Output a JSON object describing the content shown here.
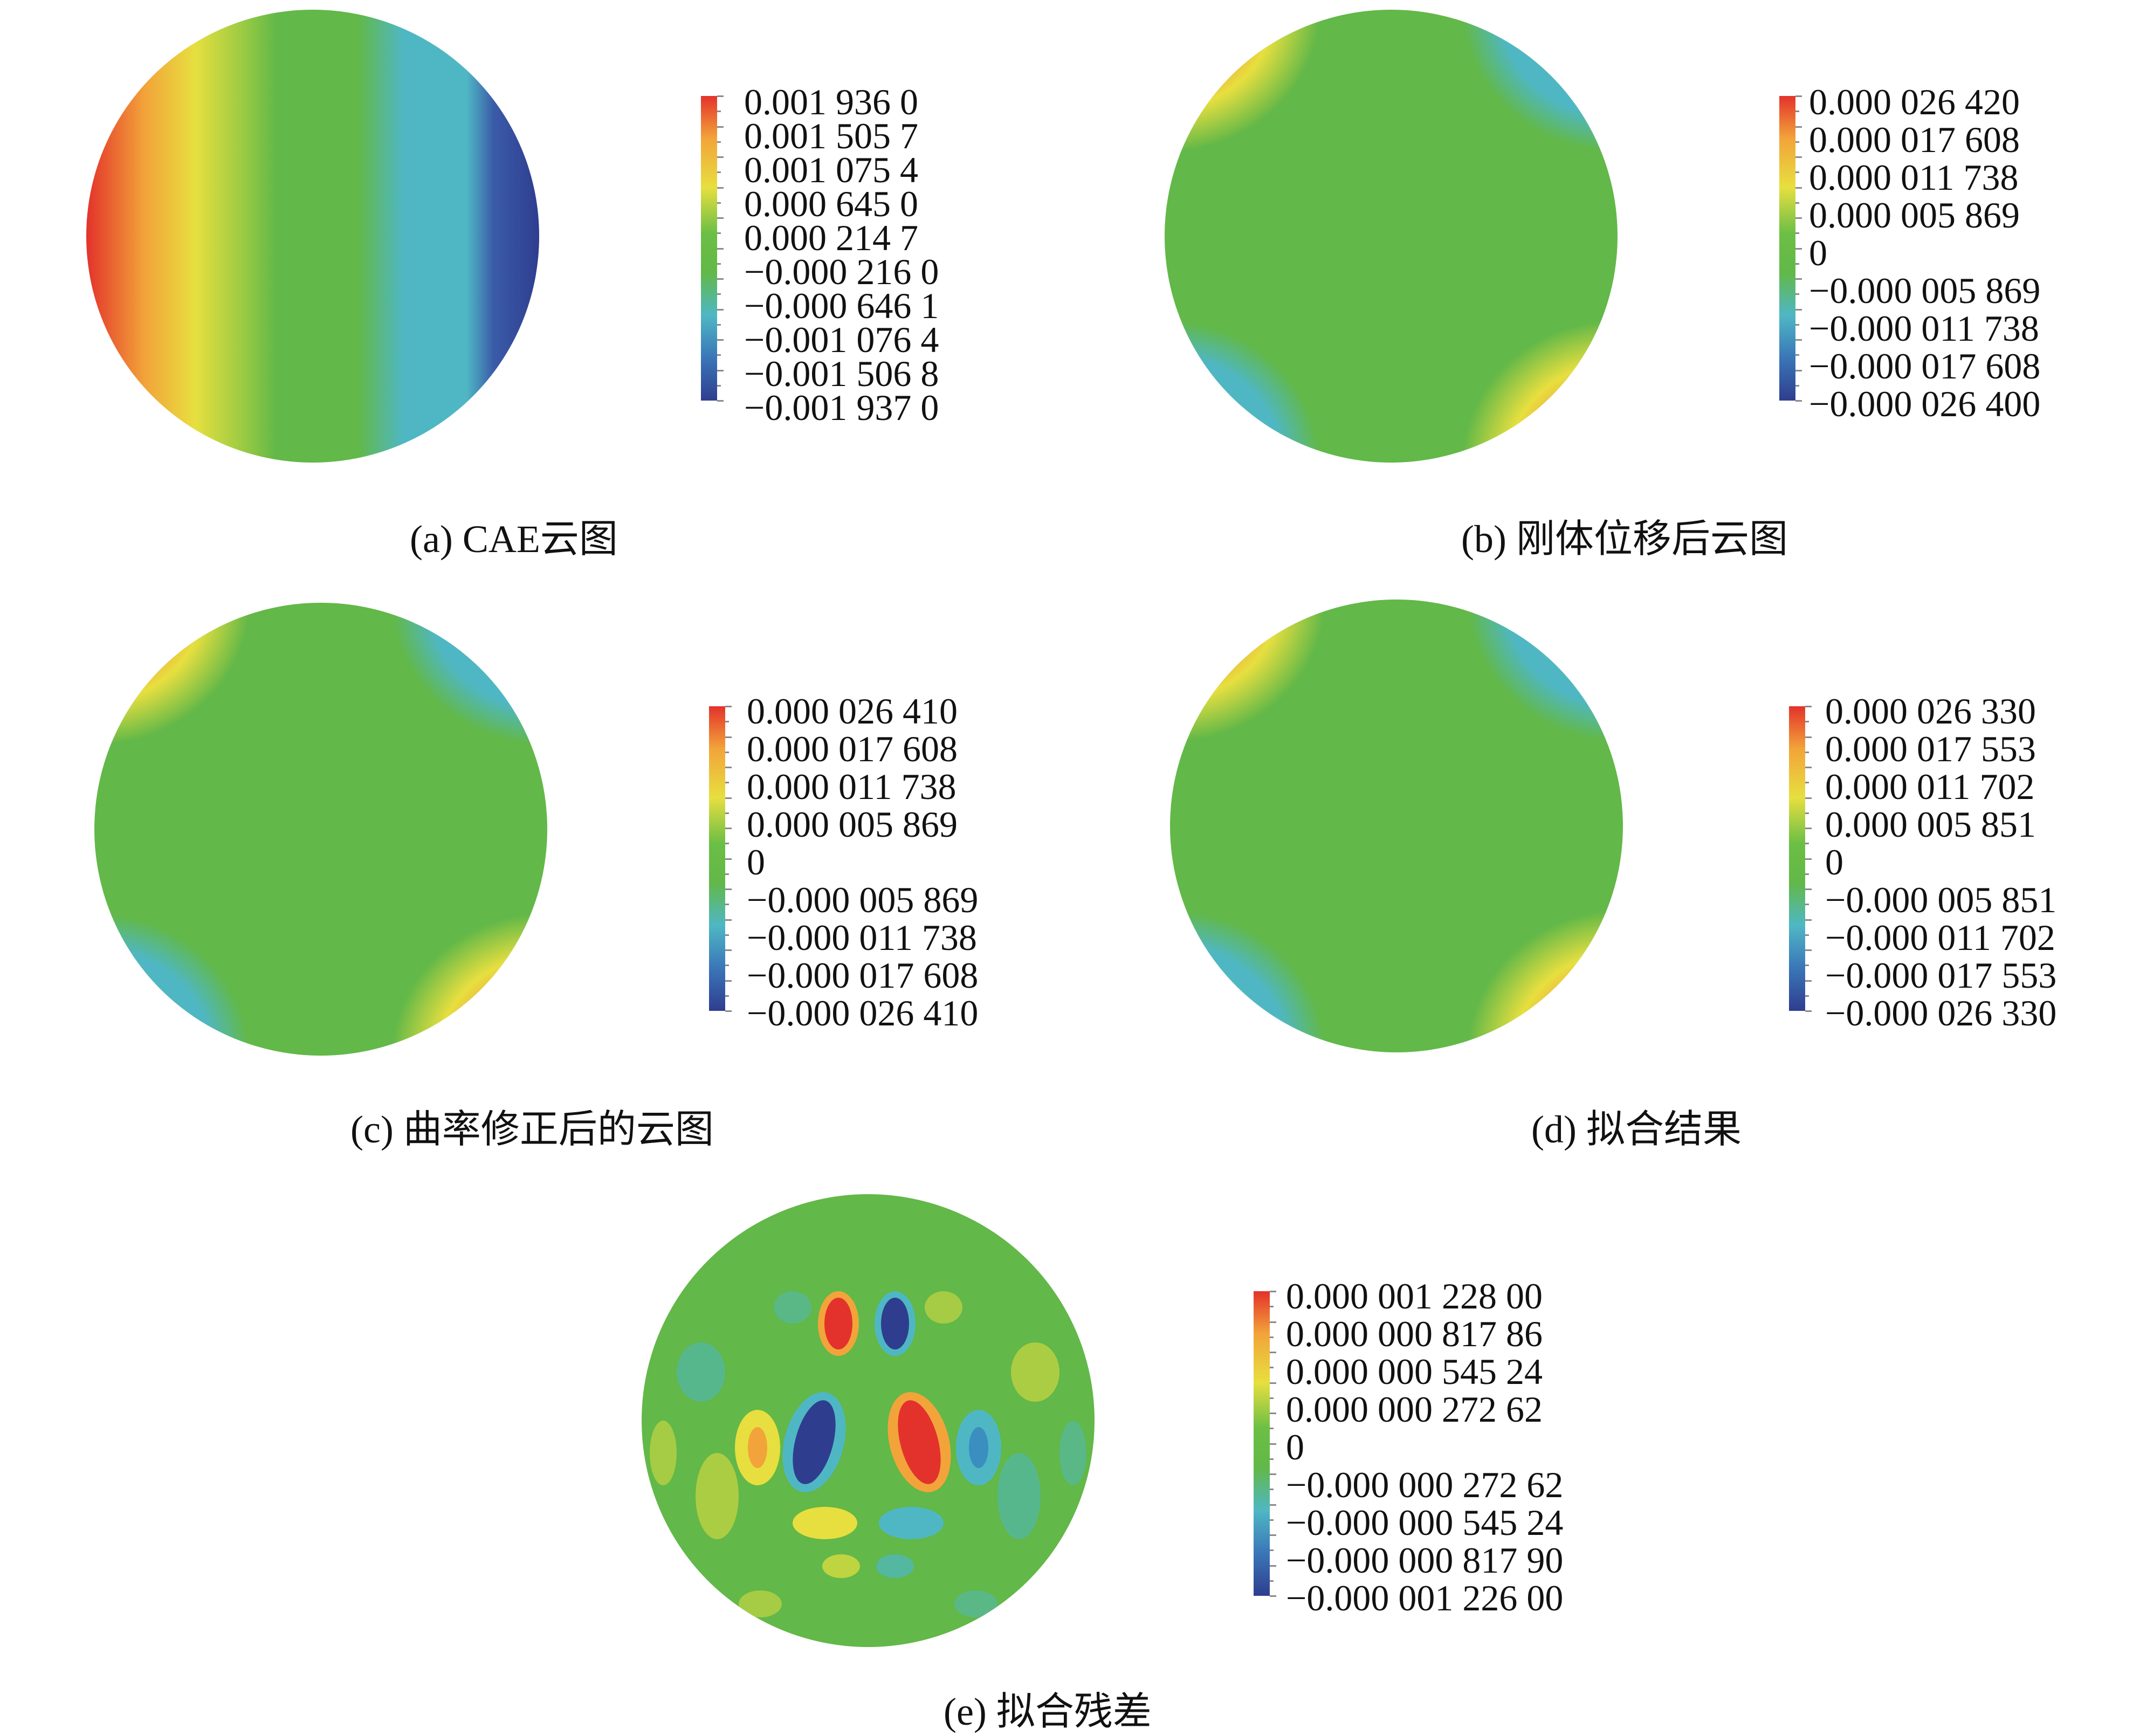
{
  "panels": [
    {
      "id": "a",
      "caption": "(a) CAE云图",
      "legend": [
        "0.001 936 0",
        "0.001 505 7",
        "0.001 075 4",
        "0.000 645 0",
        "0.000 214 7",
        "−0.000 216 0",
        "−0.000 646 1",
        "−0.001 076 4",
        "−0.001 506 8",
        "−0.001 937 0"
      ]
    },
    {
      "id": "b",
      "caption": "(b) 刚体位移后云图",
      "legend": [
        "0.000 026 420",
        "0.000 017 608",
        "0.000 011 738",
        "0.000 005 869",
        "0",
        "−0.000 005 869",
        "−0.000 011 738",
        "−0.000 017 608",
        "−0.000 026 400"
      ]
    },
    {
      "id": "c",
      "caption": "(c) 曲率修正后的云图",
      "legend": [
        "0.000 026 410",
        "0.000 017 608",
        "0.000 011 738",
        "0.000 005 869",
        "0",
        "−0.000 005 869",
        "−0.000 011 738",
        "−0.000 017 608",
        "−0.000 026 410"
      ]
    },
    {
      "id": "d",
      "caption": "(d) 拟合结果",
      "legend": [
        "0.000 026 330",
        "0.000 017 553",
        "0.000 011 702",
        "0.000 005 851",
        "0",
        "−0.000 005 851",
        "−0.000 011 702",
        "−0.000 017 553",
        "−0.000 026 330"
      ]
    },
    {
      "id": "e",
      "caption": "(e) 拟合残差",
      "legend": [
        "0.000 001 228 00",
        "0.000 000 817 86",
        "0.000 000 545 24",
        "0.000 000 272 62",
        "0",
        "−0.000 000 272 62",
        "−0.000 000 545 24",
        "−0.000 000 817 90",
        "−0.000 001 226 00"
      ]
    }
  ],
  "colors": {
    "red": "#e3322b",
    "orange": "#f2a43a",
    "yellow": "#e7df3f",
    "green": "#62b848",
    "cyan": "#4fb7c4",
    "blue": "#2f3d8f"
  }
}
